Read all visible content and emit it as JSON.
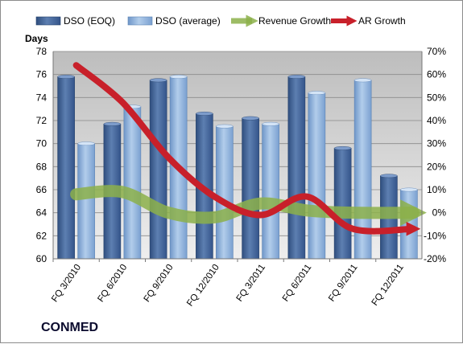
{
  "company": "CONMED",
  "chart_data": {
    "type": "bar",
    "categories": [
      "FQ 3/2010",
      "FQ 6/2010",
      "FQ 9/2010",
      "FQ 12/2010",
      "FQ 3/2011",
      "FQ 6/2011",
      "FQ 9/2011",
      "FQ 12/2011"
    ],
    "series": [
      {
        "name": "DSO (EOQ)",
        "type": "bar",
        "axis": "left",
        "values": [
          75.8,
          71.7,
          75.5,
          72.6,
          72.2,
          75.8,
          69.6,
          67.2
        ]
      },
      {
        "name": "DSO (average)",
        "type": "bar",
        "axis": "left",
        "values": [
          70.0,
          73.2,
          75.8,
          71.5,
          71.7,
          74.4,
          75.5,
          66.0
        ]
      },
      {
        "name": "Revenue Growth",
        "type": "line",
        "axis": "right",
        "values": [
          8,
          9,
          0,
          -2,
          4,
          1,
          0,
          0
        ]
      },
      {
        "name": "AR Growth",
        "type": "line",
        "axis": "right",
        "values": [
          64,
          48,
          24,
          7,
          -1,
          7,
          -7,
          -7
        ]
      }
    ],
    "ylabel": "Days",
    "ylim": [
      60,
      78
    ],
    "yticks": [
      "60",
      "62",
      "64",
      "66",
      "68",
      "70",
      "72",
      "74",
      "76",
      "78"
    ],
    "y2lim": [
      -20,
      70
    ],
    "y2ticks": [
      "-20%",
      "-10%",
      "0%",
      "10%",
      "20%",
      "30%",
      "40%",
      "50%",
      "60%",
      "70%"
    ],
    "legend_position": "top",
    "grid": true,
    "colors": {
      "dso_eoq": "#4a6a9c",
      "dso_avg": "#8fb3dc",
      "revenue_growth": "#8cb04a",
      "ar_growth": "#c8202a",
      "plot_bg": "#c9c9c9"
    }
  }
}
